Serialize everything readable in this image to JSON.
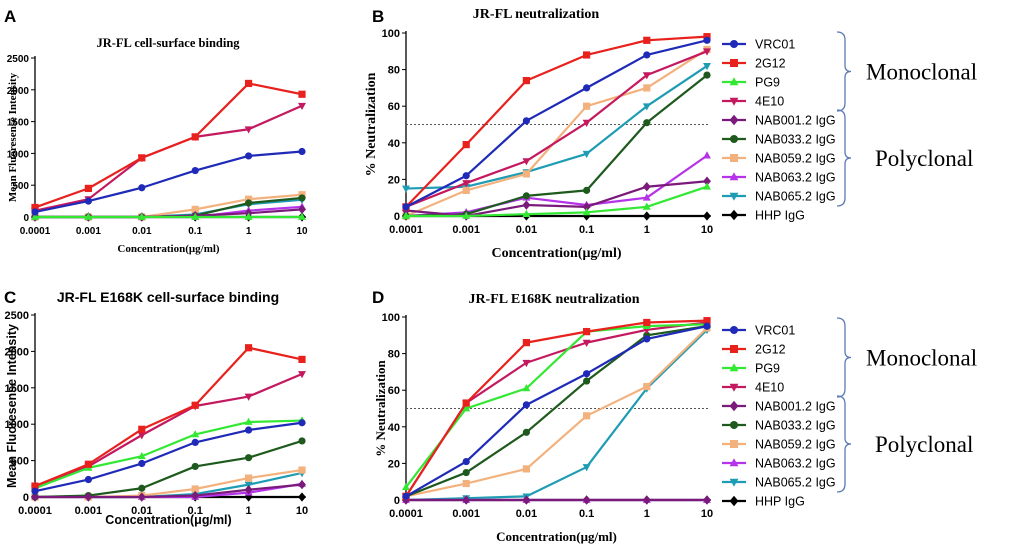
{
  "figure": {
    "mono_label": "Monoclonal",
    "poly_label": "Polyclonal"
  },
  "series_styles": [
    {
      "name": "VRC01",
      "color": "#1f2bb8",
      "marker": "circle"
    },
    {
      "name": "2G12",
      "color": "#e8211d",
      "marker": "square"
    },
    {
      "name": "PG9",
      "color": "#33e833",
      "marker": "triangle-up"
    },
    {
      "name": "4E10",
      "color": "#c4195f",
      "marker": "triangle-down"
    },
    {
      "name": "NAB001.2 IgG",
      "color": "#7a1a7a",
      "marker": "diamond"
    },
    {
      "name": "NAB033.2 IgG",
      "color": "#1e5a1e",
      "marker": "circle"
    },
    {
      "name": "NAB059.2 IgG",
      "color": "#f3b27d",
      "marker": "square"
    },
    {
      "name": "NAB063.2 IgG",
      "color": "#b533e8",
      "marker": "triangle-up"
    },
    {
      "name": "NAB065.2 IgG",
      "color": "#1e9cb3",
      "marker": "triangle-down"
    },
    {
      "name": "HHP IgG",
      "color": "#000000",
      "marker": "diamond"
    }
  ],
  "chart_data": [
    {
      "panel": "A",
      "type": "line",
      "title": "JR-FL cell-surface binding",
      "xlabel": "Concentration(μg/ml)",
      "ylabel": "Mean Fluoresense Intensity",
      "categories": [
        "0.0001",
        "0.001",
        "0.01",
        "0.1",
        "1",
        "10"
      ],
      "ylim": [
        0,
        2500
      ],
      "yticks": [
        "0",
        "500",
        "1000",
        "1500",
        "2000",
        "2500"
      ],
      "series": [
        {
          "name": "VRC01",
          "values": [
            80,
            250,
            460,
            730,
            960,
            1030
          ]
        },
        {
          "name": "2G12",
          "values": [
            150,
            450,
            930,
            1260,
            2100,
            1930
          ]
        },
        {
          "name": "PG9",
          "values": [
            0,
            0,
            0,
            0,
            0,
            0
          ]
        },
        {
          "name": "4E10",
          "values": [
            100,
            280,
            930,
            1260,
            1380,
            1750
          ]
        },
        {
          "name": "NAB001.2 IgG",
          "values": [
            0,
            0,
            0,
            20,
            60,
            120
          ]
        },
        {
          "name": "NAB033.2 IgG",
          "values": [
            0,
            0,
            0,
            20,
            220,
            300
          ]
        },
        {
          "name": "NAB059.2 IgG",
          "values": [
            0,
            0,
            0,
            120,
            280,
            350
          ]
        },
        {
          "name": "NAB063.2 IgG",
          "values": [
            0,
            0,
            0,
            0,
            100,
            160
          ]
        },
        {
          "name": "NAB065.2 IgG",
          "values": [
            0,
            0,
            0,
            40,
            200,
            270
          ]
        },
        {
          "name": "HHP IgG",
          "values": [
            0,
            0,
            0,
            0,
            0,
            0
          ]
        }
      ]
    },
    {
      "panel": "B",
      "type": "line",
      "title": "JR-FL neutralization",
      "xlabel": "Concentration(μg/ml)",
      "ylabel": "% Neutralization",
      "categories": [
        "0.0001",
        "0.001",
        "0.01",
        "0.1",
        "1",
        "10"
      ],
      "ylim": [
        0,
        100
      ],
      "yticks": [
        "0",
        "20",
        "40",
        "60",
        "80",
        "100"
      ],
      "reference_line": 50,
      "series": [
        {
          "name": "VRC01",
          "values": [
            5,
            22,
            52,
            70,
            88,
            96
          ]
        },
        {
          "name": "2G12",
          "values": [
            5,
            39,
            74,
            88,
            96,
            98
          ]
        },
        {
          "name": "PG9",
          "values": [
            0,
            0,
            1,
            2,
            5,
            16
          ]
        },
        {
          "name": "4E10",
          "values": [
            5,
            18,
            30,
            51,
            77,
            90
          ]
        },
        {
          "name": "NAB001.2 IgG",
          "values": [
            3,
            0,
            6,
            5,
            16,
            19
          ]
        },
        {
          "name": "NAB033.2 IgG",
          "values": [
            0,
            1,
            11,
            14,
            51,
            77
          ]
        },
        {
          "name": "NAB059.2 IgG",
          "values": [
            0,
            14,
            23,
            60,
            70,
            91
          ]
        },
        {
          "name": "NAB063.2 IgG",
          "values": [
            0,
            2,
            10,
            6,
            10,
            33
          ]
        },
        {
          "name": "NAB065.2 IgG",
          "values": [
            15,
            16,
            24,
            34,
            60,
            82
          ]
        },
        {
          "name": "HHP IgG",
          "values": [
            0,
            0,
            0,
            0,
            0,
            0
          ]
        }
      ],
      "legend": [
        "VRC01",
        "2G12",
        "PG9",
        "4E10",
        "NAB001.2 IgG",
        "NAB033.2 IgG",
        "NAB059.2 IgG",
        "NAB063.2 IgG",
        "NAB065.2 IgG",
        "HHP IgG"
      ]
    },
    {
      "panel": "C",
      "type": "line",
      "title": "JR-FL E168K cell-surface binding",
      "xlabel": "Concentration(μg/ml)",
      "ylabel": "Mean Fluoresense Intensity",
      "categories": [
        "0.0001",
        "0.001",
        "0.01",
        "0.1",
        "1",
        "10"
      ],
      "ylim": [
        0,
        2500
      ],
      "yticks": [
        "0",
        "500",
        "1000",
        "1500",
        "2000",
        "2500"
      ],
      "series": [
        {
          "name": "VRC01",
          "values": [
            80,
            240,
            460,
            750,
            920,
            1020
          ]
        },
        {
          "name": "2G12",
          "values": [
            150,
            450,
            930,
            1260,
            2050,
            1890
          ]
        },
        {
          "name": "PG9",
          "values": [
            120,
            400,
            560,
            860,
            1030,
            1050
          ]
        },
        {
          "name": "4E10",
          "values": [
            120,
            420,
            850,
            1250,
            1380,
            1690
          ]
        },
        {
          "name": "NAB001.2 IgG",
          "values": [
            0,
            0,
            0,
            20,
            100,
            170
          ]
        },
        {
          "name": "NAB033.2 IgG",
          "values": [
            0,
            20,
            120,
            420,
            540,
            770
          ]
        },
        {
          "name": "NAB059.2 IgG",
          "values": [
            0,
            0,
            20,
            110,
            260,
            370
          ]
        },
        {
          "name": "NAB063.2 IgG",
          "values": [
            0,
            0,
            0,
            0,
            60,
            180
          ]
        },
        {
          "name": "NAB065.2 IgG",
          "values": [
            0,
            0,
            0,
            40,
            170,
            330
          ]
        },
        {
          "name": "HHP IgG",
          "values": [
            0,
            0,
            0,
            0,
            0,
            0
          ]
        }
      ]
    },
    {
      "panel": "D",
      "type": "line",
      "title": "JR-FL E168K neutralization",
      "xlabel": "Concentration(μg/ml)",
      "ylabel": "% Neutralization",
      "categories": [
        "0.0001",
        "0.001",
        "0.01",
        "0.1",
        "1",
        "10"
      ],
      "ylim": [
        0,
        100
      ],
      "yticks": [
        "0",
        "20",
        "40",
        "60",
        "80",
        "100"
      ],
      "reference_line": 50,
      "series": [
        {
          "name": "VRC01",
          "values": [
            2,
            21,
            52,
            69,
            88,
            95
          ]
        },
        {
          "name": "2G12",
          "values": [
            2,
            53,
            86,
            92,
            97,
            98
          ]
        },
        {
          "name": "PG9",
          "values": [
            7,
            50,
            61,
            92,
            95,
            96
          ]
        },
        {
          "name": "4E10",
          "values": [
            2,
            53,
            75,
            86,
            93,
            97
          ]
        },
        {
          "name": "NAB001.2 IgG",
          "values": [
            0,
            0,
            0,
            0,
            0,
            0
          ]
        },
        {
          "name": "NAB033.2 IgG",
          "values": [
            2,
            15,
            37,
            65,
            90,
            95
          ]
        },
        {
          "name": "NAB059.2 IgG",
          "values": [
            2,
            9,
            17,
            46,
            62,
            94
          ]
        },
        {
          "name": "NAB063.2 IgG",
          "values": [
            0,
            0,
            0,
            0,
            0,
            0
          ]
        },
        {
          "name": "NAB065.2 IgG",
          "values": [
            0,
            1,
            2,
            18,
            61,
            93
          ]
        },
        {
          "name": "HHP IgG",
          "values": [
            0,
            0,
            0,
            0,
            0,
            0
          ]
        }
      ],
      "legend": [
        "VRC01",
        "2G12",
        "PG9",
        "4E10",
        "NAB001.2 IgG",
        "NAB033.2 IgG",
        "NAB059.2 IgG",
        "NAB063.2 IgG",
        "NAB065.2 IgG",
        "HHP IgG"
      ]
    }
  ]
}
